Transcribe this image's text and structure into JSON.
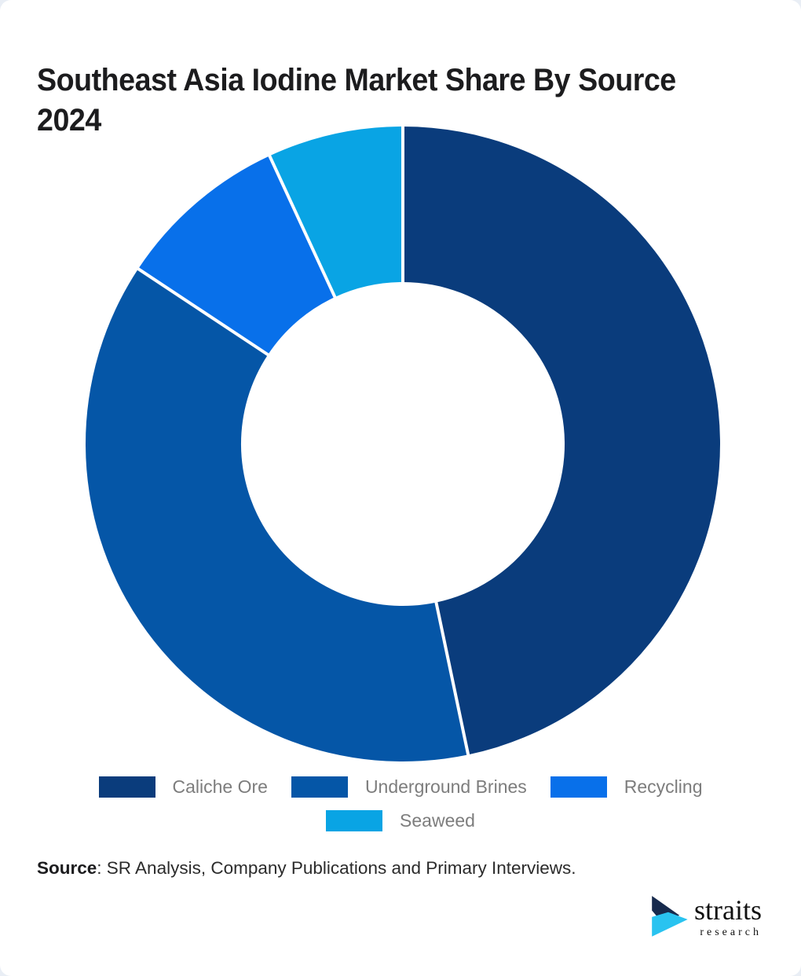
{
  "page": {
    "title": "Southeast Asia Iodine Market Share By Source 2024"
  },
  "chart_data": {
    "type": "pie",
    "subtype": "donut",
    "title": "Southeast Asia Iodine Market Share By Source 2024",
    "categories": [
      "Caliche Ore",
      "Underground Brines",
      "Recycling",
      "Seaweed"
    ],
    "values": [
      46.7,
      37.6,
      8.8,
      6.9
    ],
    "unit": "percent",
    "colors": [
      "#0a3c7c",
      "#0556a7",
      "#0870ea",
      "#09a4e4"
    ],
    "start_angle_deg_from_top": 0,
    "direction": "clockwise",
    "inner_radius_ratio": 0.51,
    "divider_color": "#ffffff",
    "legend_position": "bottom",
    "data_labels": "none"
  },
  "legend": {
    "items": [
      {
        "label": "Caliche Ore",
        "color": "#0a3c7c"
      },
      {
        "label": "Underground Brines",
        "color": "#0556a7"
      },
      {
        "label": "Recycling",
        "color": "#0870ea"
      },
      {
        "label": "Seaweed",
        "color": "#09a4e4"
      }
    ]
  },
  "source": {
    "label": "Source",
    "text": ": SR Analysis, Company Publications and Primary Interviews."
  },
  "logo": {
    "name": "straits",
    "sub": "research",
    "navy": "#172a4d",
    "cyan": "#29c3f0"
  }
}
